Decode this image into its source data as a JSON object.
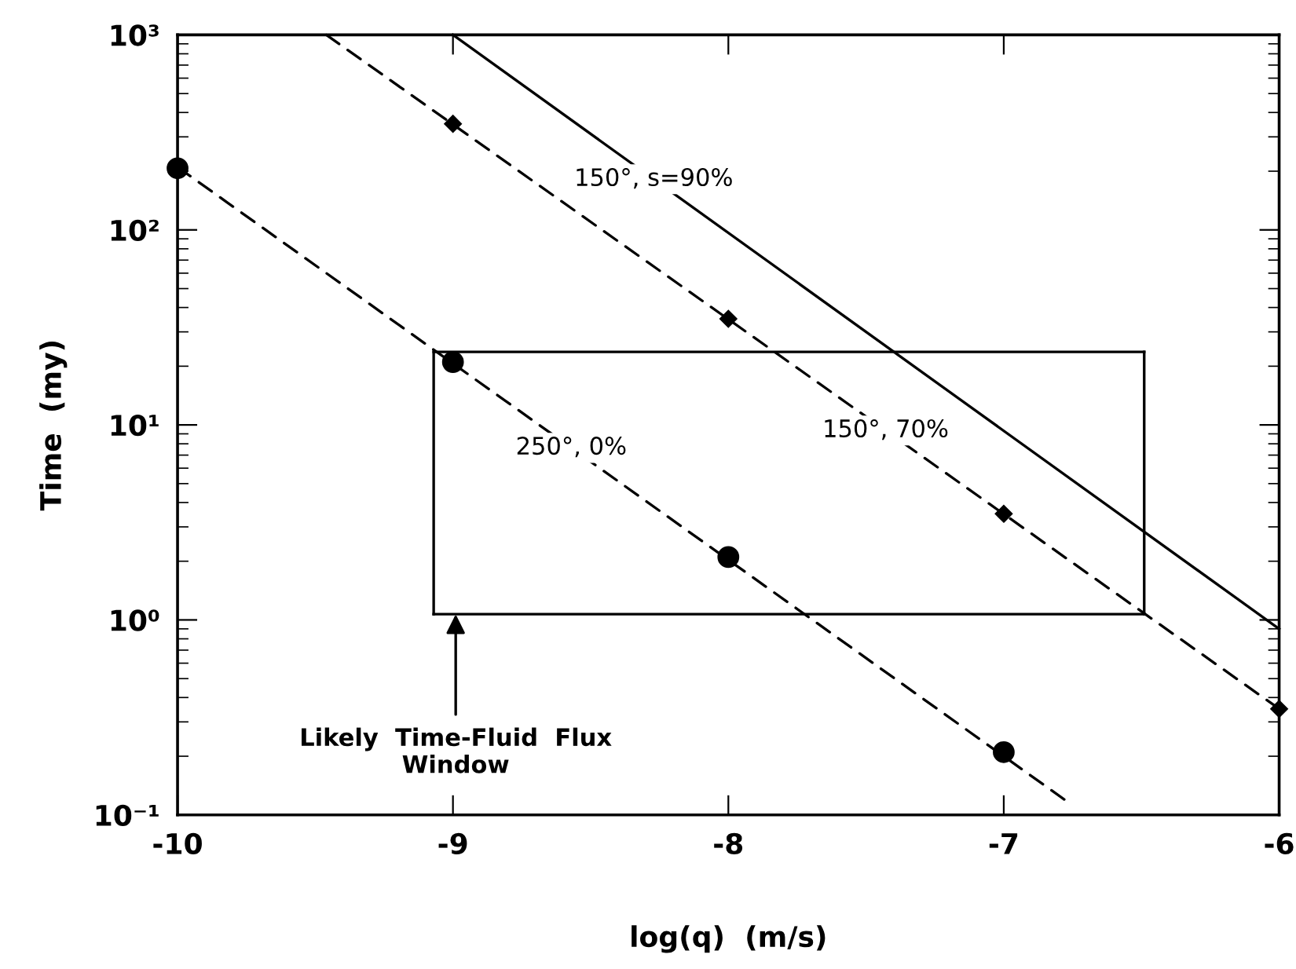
{
  "chart_data": {
    "type": "line",
    "xlabel": "log(q)  (m/s)",
    "ylabel": "Time  (my)",
    "log": "y",
    "xlim": [
      -10,
      -6
    ],
    "xticks": [
      -10,
      -9,
      -8,
      -7,
      -6
    ],
    "ylim": [
      0.1,
      1000
    ],
    "yticks": [
      {
        "value": 0.1,
        "label": "10⁻¹"
      },
      {
        "value": 1,
        "label": "10⁰"
      },
      {
        "value": 10,
        "label": "10¹"
      },
      {
        "value": 100,
        "label": "10²"
      },
      {
        "value": 1000,
        "label": "10³"
      }
    ],
    "grid": false,
    "series": [
      {
        "name": "250°, 0%",
        "color": "#000000",
        "line_style": "dashed",
        "x": [
          -10,
          -6.78
        ],
        "values": [
          210,
          0.12
        ]
      },
      {
        "type": "scatter",
        "color": "#000000",
        "marker": "circle",
        "x": [
          -10,
          -9,
          -8,
          -7
        ],
        "values": [
          207,
          21,
          2.1,
          0.21
        ]
      },
      {
        "name": "150°, 70%",
        "color": "#000000",
        "line_style": "dashed",
        "x": [
          -9.46,
          -6
        ],
        "values": [
          1000,
          0.35
        ]
      },
      {
        "type": "scatter",
        "color": "#000000",
        "marker": "diamond",
        "x": [
          -9,
          -8,
          -7,
          -6
        ],
        "values": [
          350,
          35,
          3.5,
          0.35
        ]
      },
      {
        "name": "150°, s=90%",
        "color": "#000000",
        "line_style": "solid",
        "x": [
          -9,
          -6
        ],
        "values": [
          1000,
          0.9
        ]
      },
      {
        "type": "line",
        "color": "#000000",
        "line_style": "solid",
        "x": [
          -9.07,
          -6.49
        ],
        "values": [
          1.07,
          1.07
        ]
      },
      {
        "type": "line",
        "color": "#000000",
        "line_style": "solid",
        "x": [
          -9.07,
          -6.49
        ],
        "values": [
          23.7,
          23.7
        ]
      },
      {
        "type": "line",
        "color": "#000000",
        "line_style": "solid",
        "x": [
          -9.07,
          -9.07
        ],
        "values": [
          1.07,
          23.7
        ]
      },
      {
        "type": "line",
        "color": "#000000",
        "line_style": "solid",
        "x": [
          -6.49,
          -6.49
        ],
        "values": [
          1.07,
          23.7
        ]
      }
    ],
    "annotations": [
      {
        "text": "Likely  Time-Fluid  Flux\nWindow",
        "x": -8.99,
        "y": 1.07
      }
    ]
  }
}
